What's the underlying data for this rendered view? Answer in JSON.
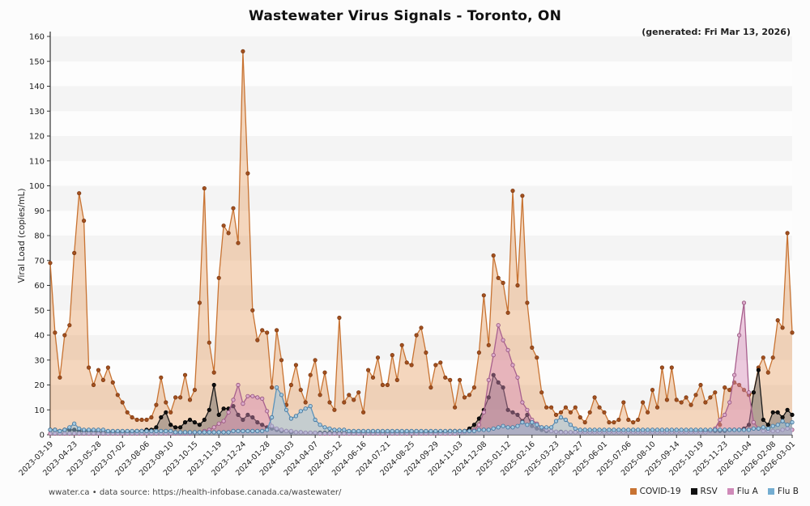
{
  "header": {
    "generated": "(generated: Fri Mar 13, 2026)"
  },
  "footer": {
    "source": "wwater.ca • data source: https://health-infobase.canada.ca/wastewater/"
  },
  "chart_data": {
    "type": "line",
    "title": "Wastewater Virus Signals - Toronto, ON",
    "xlabel": "",
    "ylabel": "Viral Load (copies/mL)",
    "ylim": [
      0,
      160
    ],
    "ytick_step": 10,
    "grid": "striped-bands",
    "legend_position": "bottom-right",
    "n_points": 155,
    "x_tick_indices": [
      0,
      5,
      10,
      15,
      20,
      25,
      30,
      35,
      40,
      45,
      50,
      55,
      60,
      65,
      70,
      75,
      80,
      85,
      90,
      95,
      100,
      105,
      110,
      115,
      120,
      125,
      130,
      135,
      140,
      145,
      150,
      154
    ],
    "x_tick_labels": [
      "2023-03-19",
      "2023-04-23",
      "2023-05-28",
      "2023-07-02",
      "2023-08-06",
      "2023-09-10",
      "2023-10-15",
      "2023-11-19",
      "2023-12-24",
      "2024-01-28",
      "2024-03-03",
      "2024-04-07",
      "2024-05-12",
      "2024-06-16",
      "2024-07-21",
      "2024-08-25",
      "2024-09-29",
      "2024-11-03",
      "2024-12-08",
      "2025-01-12",
      "2025-02-16",
      "2025-03-23",
      "2025-04-27",
      "2025-06-01",
      "2025-07-06",
      "2025-08-10",
      "2025-09-14",
      "2025-10-19",
      "2025-11-23",
      "2026-01-04",
      "2026-02-08",
      "2026-03-01"
    ],
    "series": [
      {
        "name": "COVID-19",
        "legend_color": "#c87332",
        "line_color": "#c87332",
        "marker_fill": "#a3511f",
        "marker_stroke": "#7e3a14",
        "area_color": "rgba(230,150,85,0.38)",
        "values": [
          69,
          41,
          23,
          40,
          44,
          73,
          97,
          86,
          27,
          20,
          26,
          22,
          27,
          21,
          16,
          13,
          9,
          7,
          6,
          6,
          6,
          7,
          12,
          23,
          13,
          9,
          15,
          15,
          24,
          14,
          18,
          53,
          99,
          37,
          25,
          63,
          84,
          81,
          91,
          77,
          154,
          105,
          50,
          38,
          42,
          41,
          19,
          42,
          30,
          12,
          20,
          28,
          18,
          13,
          24,
          30,
          16,
          25,
          13,
          10,
          47,
          13,
          16,
          14,
          17,
          9,
          26,
          23,
          31,
          20,
          20,
          32,
          22,
          36,
          29,
          28,
          40,
          43,
          33,
          19,
          28,
          29,
          23,
          22,
          11,
          22,
          15,
          16,
          19,
          33,
          56,
          36,
          72,
          63,
          61,
          49,
          98,
          60,
          96,
          53,
          35,
          31,
          17,
          11,
          11,
          8,
          9,
          11,
          9,
          11,
          7,
          5,
          9,
          15,
          11,
          9,
          5,
          5,
          6,
          13,
          6,
          5,
          6,
          13,
          9,
          18,
          11,
          27,
          14,
          27,
          14,
          13,
          15,
          12,
          16,
          20,
          13,
          15,
          17,
          4,
          19,
          18,
          21,
          20,
          18,
          16,
          17,
          27,
          31,
          25,
          31,
          46,
          43,
          81,
          41
        ]
      },
      {
        "name": "RSV",
        "legend_color": "#111111",
        "line_color": "#1a1a1a",
        "marker_fill": "#111111",
        "marker_stroke": "#000000",
        "area_color": "rgba(90,90,90,0.42)",
        "values": [
          2,
          2,
          1.5,
          2,
          2,
          2,
          1.5,
          1.5,
          1.5,
          1.5,
          1,
          1,
          1,
          1,
          1,
          1,
          1,
          1,
          1.5,
          1.5,
          2,
          2,
          3,
          7,
          9,
          4,
          3,
          3,
          5,
          6,
          5,
          4,
          6,
          10,
          20,
          8,
          10.5,
          10.5,
          11.5,
          8,
          6,
          8,
          7,
          5,
          4,
          3,
          2.5,
          2,
          1.5,
          1.5,
          1,
          1,
          1,
          0.8,
          0.8,
          0.8,
          0.8,
          0.8,
          0.8,
          0.8,
          0.8,
          0.8,
          0.8,
          0.8,
          0.8,
          0.8,
          0.8,
          0.8,
          0.8,
          0.8,
          0.8,
          0.8,
          0.8,
          0.8,
          0.8,
          0.8,
          0.8,
          0.8,
          1,
          1,
          1,
          1.2,
          1.2,
          1.5,
          1.5,
          1.5,
          1.5,
          2.5,
          4,
          6.5,
          10,
          15,
          24,
          21,
          19,
          10,
          9,
          8,
          5.5,
          8,
          3.5,
          2.5,
          2,
          1.5,
          1.5,
          1.2,
          1.2,
          1,
          1,
          1,
          1,
          1,
          1,
          1,
          1,
          1,
          1,
          1,
          1,
          1,
          1,
          1,
          1,
          1,
          1,
          1,
          1,
          1,
          1,
          1,
          1,
          1,
          1,
          1.2,
          1.2,
          1.2,
          1.5,
          1.5,
          1.5,
          1.5,
          1.5,
          2,
          2,
          2,
          2.5,
          4,
          17,
          26,
          6,
          4,
          9,
          9,
          7,
          10,
          8
        ]
      },
      {
        "name": "Flu A",
        "legend_color": "#cf8ab8",
        "line_color": "#a8608e",
        "marker_fill": "#dcaacb",
        "marker_stroke": "#93527c",
        "area_color": "rgba(214,140,184,0.45)",
        "values": [
          0.5,
          0.5,
          0.5,
          0.5,
          0.5,
          0.5,
          0.5,
          0.5,
          0.5,
          0.5,
          0.5,
          0.5,
          0.5,
          0.5,
          0.5,
          0.5,
          0.5,
          0.5,
          0.5,
          0.5,
          0.5,
          0.5,
          0.5,
          0.5,
          0.5,
          0.5,
          0.5,
          0.5,
          0.5,
          0.5,
          0.8,
          1,
          1.5,
          2,
          3,
          4.5,
          5.5,
          9,
          14,
          20,
          12.5,
          15.5,
          15.5,
          15,
          14.5,
          9.5,
          3.5,
          2.5,
          2,
          1.5,
          1.5,
          1,
          1,
          0.8,
          0.8,
          0.8,
          0.5,
          0.5,
          0.5,
          0.5,
          0.5,
          0.5,
          0.5,
          0.5,
          0.5,
          0.5,
          0.5,
          0.5,
          0.5,
          0.5,
          0.5,
          0.5,
          0.5,
          0.5,
          0.5,
          0.5,
          0.5,
          0.5,
          0.5,
          0.5,
          0.5,
          0.5,
          0.5,
          0.5,
          0.5,
          0.8,
          1,
          1.5,
          2,
          4,
          9,
          22,
          32,
          44,
          38,
          34,
          28,
          23,
          13,
          10,
          6,
          4.5,
          3,
          2,
          1.5,
          1.2,
          1,
          1,
          1,
          1,
          1,
          1,
          1,
          1,
          1,
          1,
          1,
          1,
          1,
          1,
          1,
          1,
          1,
          1,
          1,
          1,
          1,
          1,
          1,
          1,
          1,
          1,
          1,
          1,
          1,
          1,
          1,
          1.5,
          2.5,
          6,
          8,
          13,
          24,
          40,
          53,
          17,
          5,
          2.5,
          1.5,
          1.5,
          1.5,
          1.5,
          2,
          2.5,
          2
        ]
      },
      {
        "name": "Flu B",
        "legend_color": "#74add1",
        "line_color": "#5b93bb",
        "marker_fill": "#a3cae2",
        "marker_stroke": "#3f6f96",
        "area_color": "rgba(150,195,225,0.5)",
        "values": [
          2,
          2,
          1.5,
          2,
          3,
          4.5,
          2.5,
          2,
          2,
          2,
          2,
          2,
          1.5,
          1.5,
          1.5,
          1.5,
          1.5,
          1.5,
          1.5,
          1.5,
          1.5,
          1.5,
          1.5,
          1.5,
          1.5,
          1.5,
          1,
          1,
          1,
          1,
          1,
          1,
          1,
          1,
          1,
          1,
          1,
          1,
          1.5,
          1.5,
          1.5,
          1.5,
          1.5,
          1.5,
          1.5,
          2,
          7,
          19,
          16,
          10,
          6.5,
          7.5,
          9.5,
          10.5,
          11.5,
          6,
          4,
          3,
          2.5,
          2,
          2,
          2,
          1.5,
          1.5,
          1.5,
          1.5,
          1.5,
          1.5,
          1.5,
          1.5,
          1.5,
          1.5,
          1.5,
          1.5,
          1.5,
          1.5,
          1.5,
          1.5,
          1.5,
          1.5,
          1.5,
          1.5,
          1.5,
          1.5,
          1.5,
          1.5,
          1.5,
          1.5,
          1.5,
          2,
          2,
          2,
          2.5,
          3,
          3.5,
          3,
          3,
          3.5,
          5,
          4,
          5,
          4,
          3,
          3,
          3,
          5.5,
          7,
          6,
          4,
          2.5,
          2,
          2,
          2,
          2,
          2,
          2,
          2,
          2,
          2,
          2,
          2,
          2,
          2,
          2,
          2,
          2,
          2,
          2,
          2,
          2,
          2,
          2,
          2,
          2,
          2,
          2,
          2,
          2,
          2,
          2,
          2,
          2,
          2,
          2,
          2,
          2,
          2.5,
          2.5,
          3,
          2.5,
          3.5,
          4,
          5.5,
          4,
          5
        ]
      }
    ]
  }
}
